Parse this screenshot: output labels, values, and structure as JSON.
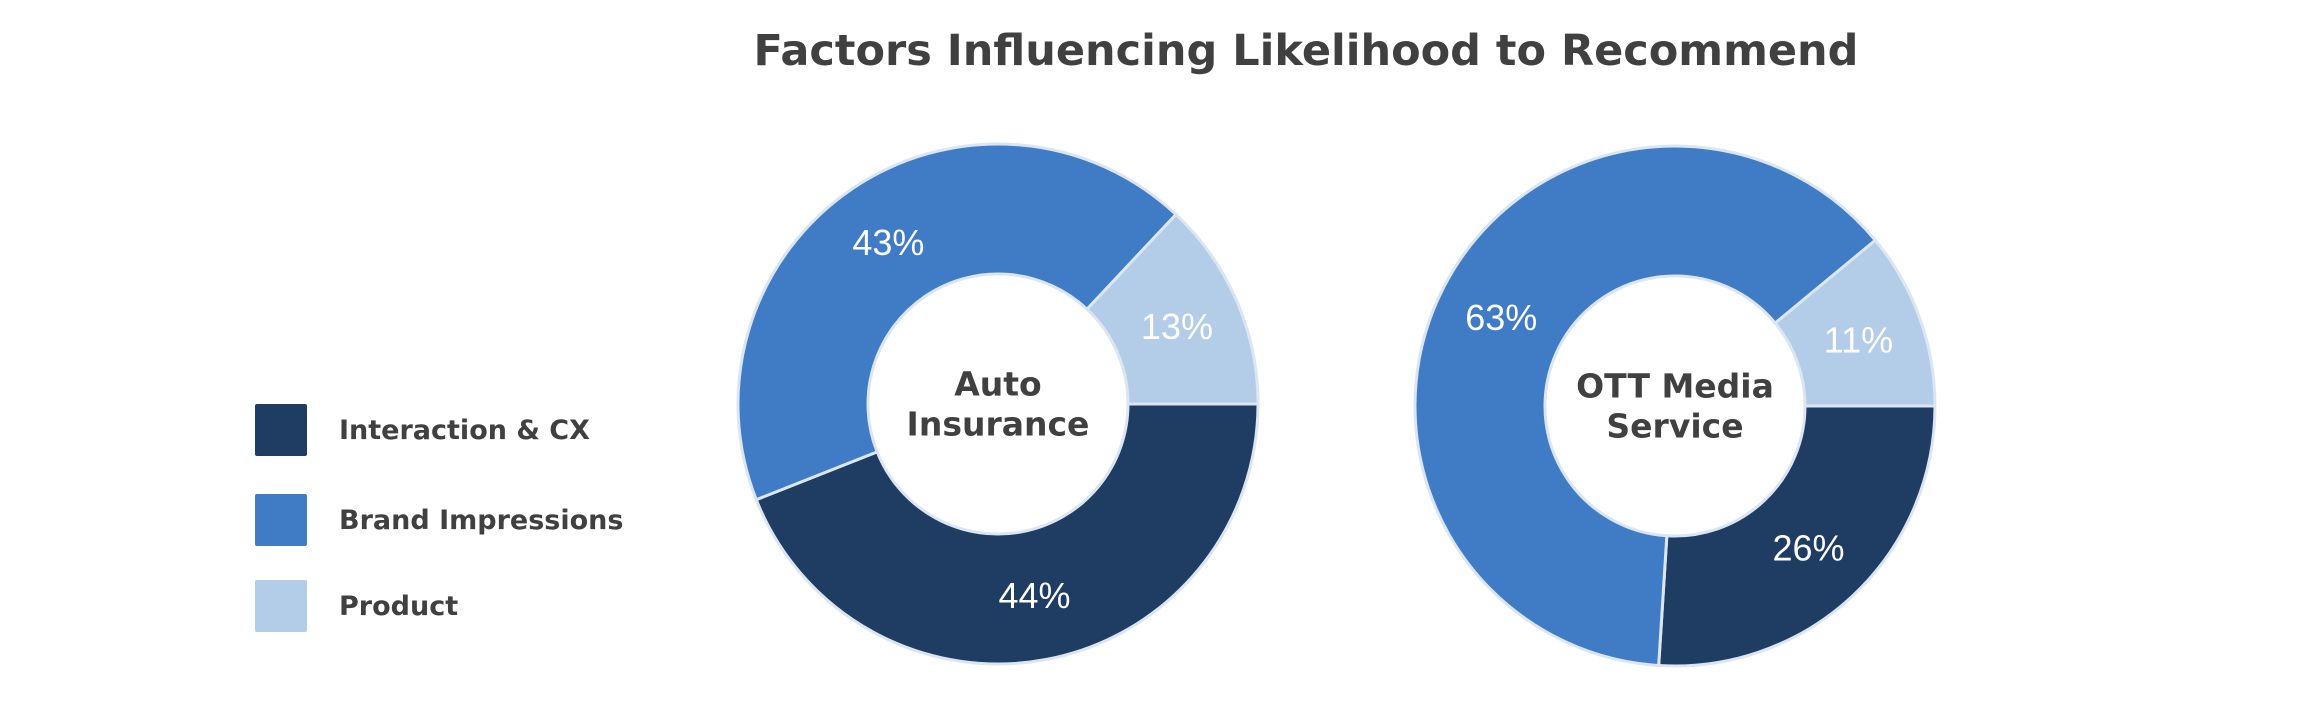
{
  "chart_data": {
    "type": "pie",
    "title": "Factors Influencing Likelihood to Recommend",
    "categories": [
      "Interaction & CX",
      "Brand Impressions",
      "Product"
    ],
    "colors": [
      "#1f3c63",
      "#3f7cc5",
      "#b3cce8"
    ],
    "legend_position": "left",
    "charts": [
      {
        "name": "Auto Insurance",
        "name_lines": [
          "Auto",
          "Insurance"
        ],
        "values": [
          44,
          43,
          13
        ],
        "labels": [
          "44%",
          "43%",
          "13%"
        ]
      },
      {
        "name": "OTT Media Service",
        "name_lines": [
          "OTT Media",
          "Service"
        ],
        "values": [
          26,
          63,
          11
        ],
        "labels": [
          "26%",
          "63%",
          "11%"
        ]
      }
    ]
  }
}
